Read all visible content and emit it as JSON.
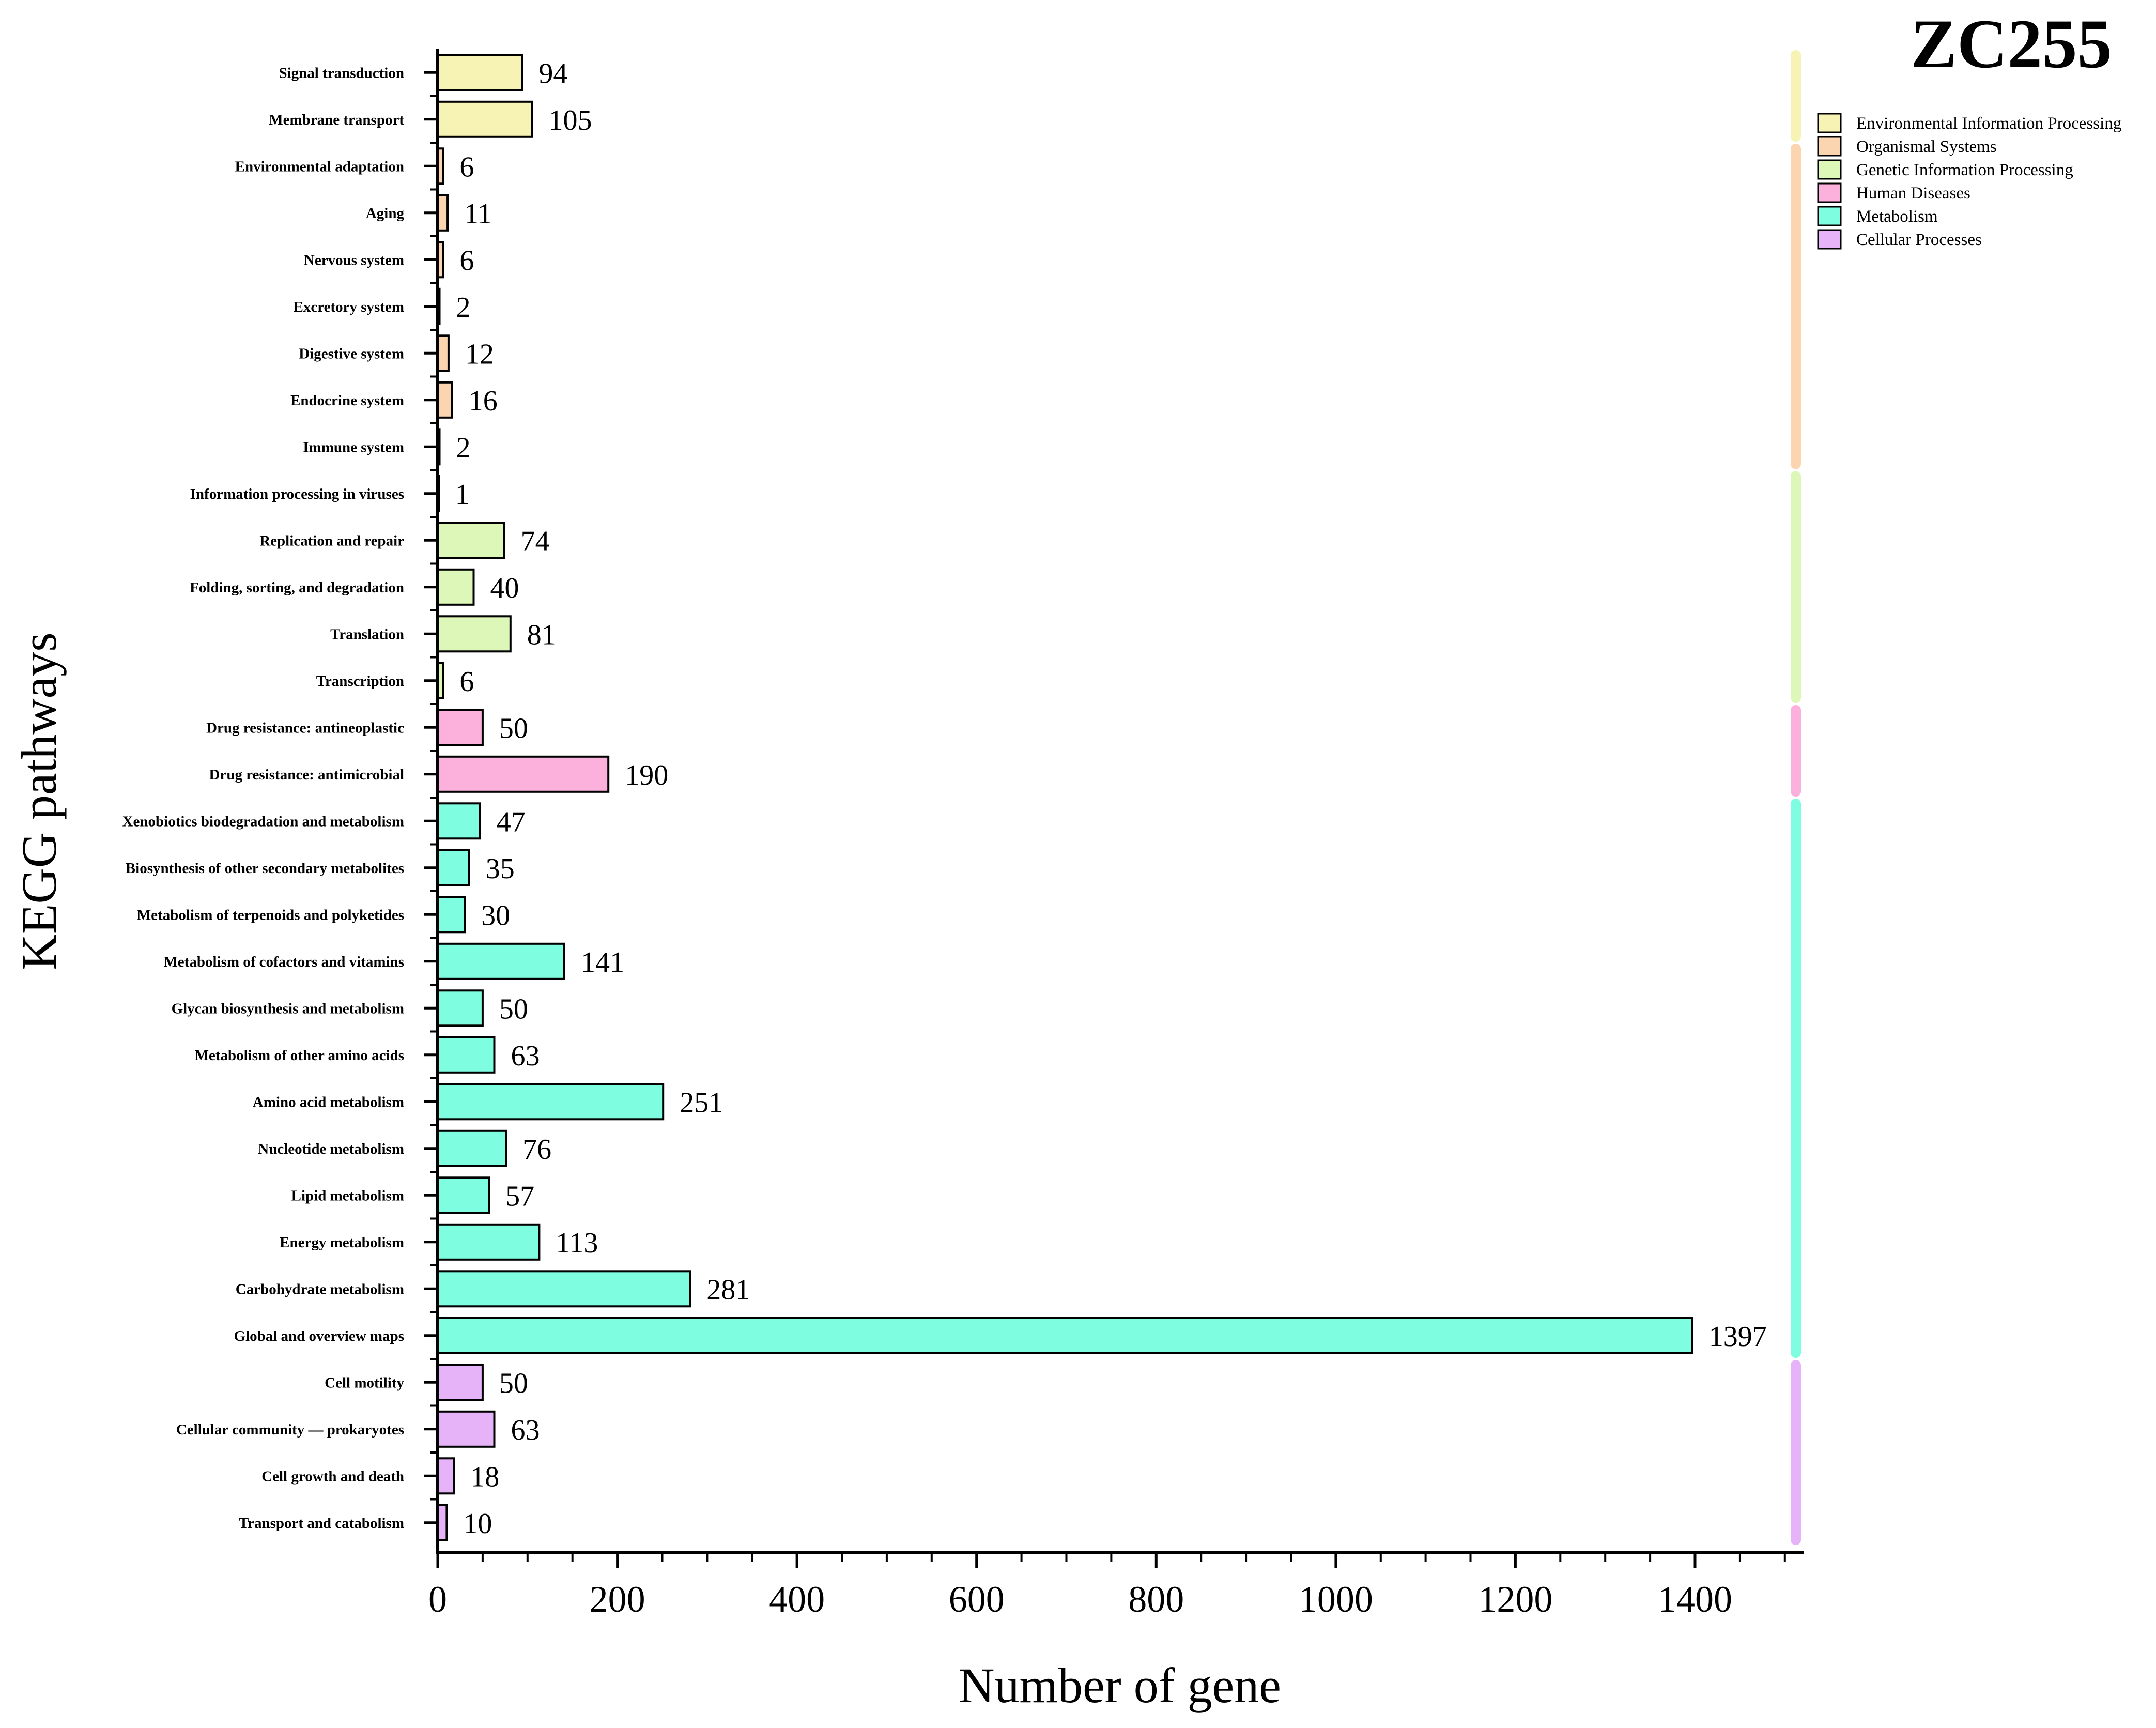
{
  "chart_data": {
    "type": "bar",
    "orientation": "horizontal",
    "title": "ZC255",
    "xlabel": "Number of gene",
    "ylabel": "KEGG pathways",
    "xlim": [
      0,
      1500
    ],
    "xticks": [
      0,
      200,
      400,
      600,
      800,
      1000,
      1200,
      1400
    ],
    "legend_position": "top-right",
    "groups": [
      {
        "name": "Environmental Information Processing",
        "color": "#F7F3B5"
      },
      {
        "name": "Organismal Systems",
        "color": "#FAD5B0"
      },
      {
        "name": "Genetic Information Processing",
        "color": "#DDF7B8"
      },
      {
        "name": "Human Diseases",
        "color": "#FBB1DC"
      },
      {
        "name": "Metabolism",
        "color": "#7FFDE0"
      },
      {
        "name": "Cellular Processes",
        "color": "#E6B2F8"
      }
    ],
    "bars": [
      {
        "label": "Signal transduction",
        "value": 94,
        "group": 0
      },
      {
        "label": "Membrane transport",
        "value": 105,
        "group": 0
      },
      {
        "label": "Environmental adaptation",
        "value": 6,
        "group": 1
      },
      {
        "label": "Aging",
        "value": 11,
        "group": 1
      },
      {
        "label": "Nervous system",
        "value": 6,
        "group": 1
      },
      {
        "label": "Excretory system",
        "value": 2,
        "group": 1
      },
      {
        "label": "Digestive system",
        "value": 12,
        "group": 1
      },
      {
        "label": "Endocrine system",
        "value": 16,
        "group": 1
      },
      {
        "label": "Immune system",
        "value": 2,
        "group": 1
      },
      {
        "label": "Information processing in viruses",
        "value": 1,
        "group": 2
      },
      {
        "label": "Replication and repair",
        "value": 74,
        "group": 2
      },
      {
        "label": "Folding, sorting, and degradation",
        "value": 40,
        "group": 2
      },
      {
        "label": "Translation",
        "value": 81,
        "group": 2
      },
      {
        "label": "Transcription",
        "value": 6,
        "group": 2
      },
      {
        "label": "Drug resistance: antineoplastic",
        "value": 50,
        "group": 3
      },
      {
        "label": "Drug resistance: antimicrobial",
        "value": 190,
        "group": 3
      },
      {
        "label": "Xenobiotics biodegradation and metabolism",
        "value": 47,
        "group": 4
      },
      {
        "label": "Biosynthesis of other secondary metabolites",
        "value": 35,
        "group": 4
      },
      {
        "label": "Metabolism of terpenoids and polyketides",
        "value": 30,
        "group": 4
      },
      {
        "label": "Metabolism of cofactors and vitamins",
        "value": 141,
        "group": 4
      },
      {
        "label": "Glycan biosynthesis and metabolism",
        "value": 50,
        "group": 4
      },
      {
        "label": "Metabolism of other amino acids",
        "value": 63,
        "group": 4
      },
      {
        "label": "Amino acid metabolism",
        "value": 251,
        "group": 4
      },
      {
        "label": "Nucleotide metabolism",
        "value": 76,
        "group": 4
      },
      {
        "label": "Lipid metabolism",
        "value": 57,
        "group": 4
      },
      {
        "label": "Energy metabolism",
        "value": 113,
        "group": 4
      },
      {
        "label": "Carbohydrate metabolism",
        "value": 281,
        "group": 4
      },
      {
        "label": "Global and overview maps",
        "value": 1397,
        "group": 4
      },
      {
        "label": "Cell motility",
        "value": 50,
        "group": 5
      },
      {
        "label": "Cellular community — prokaryotes",
        "value": 63,
        "group": 5
      },
      {
        "label": "Cell growth and death",
        "value": 18,
        "group": 5
      },
      {
        "label": "Transport and catabolism",
        "value": 10,
        "group": 5
      }
    ]
  }
}
